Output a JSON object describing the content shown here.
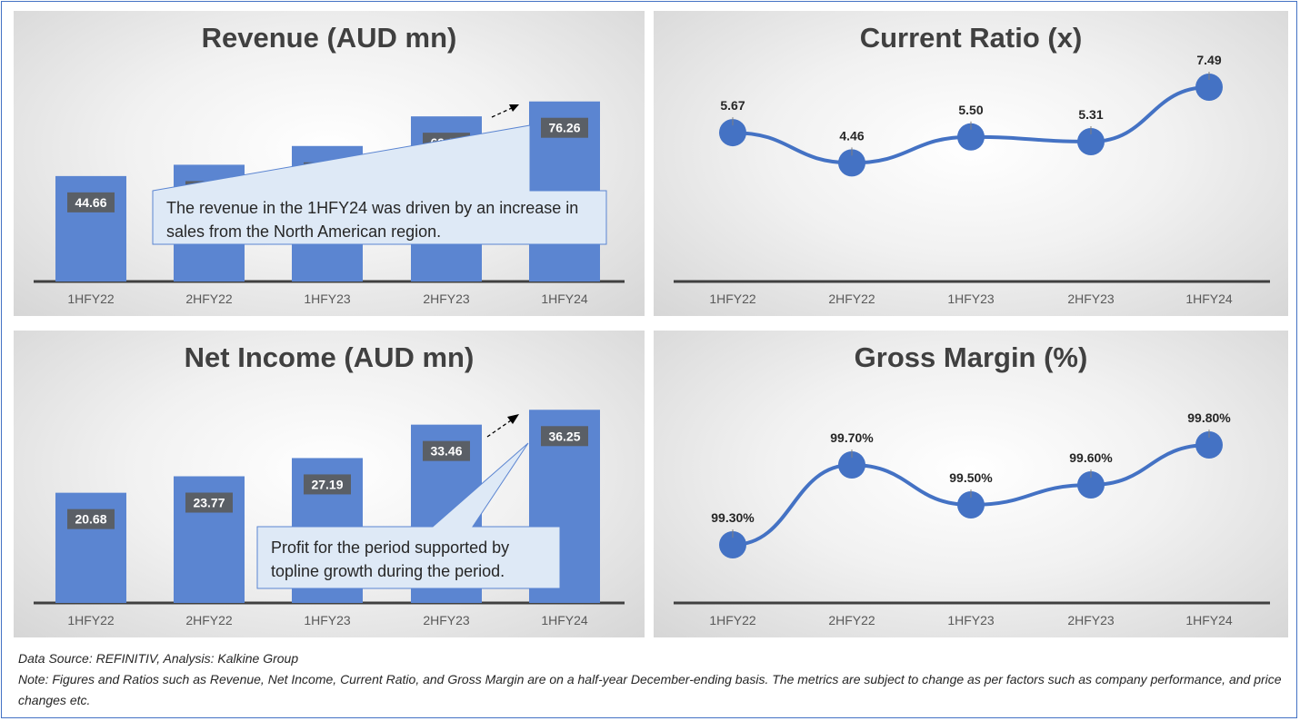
{
  "chart_data": [
    {
      "id": "revenue",
      "type": "bar",
      "title": "Revenue (AUD mn)",
      "categories": [
        "1HFY22",
        "2HFY22",
        "1HFY23",
        "2HFY23",
        "1HFY24"
      ],
      "values": [
        44.66,
        49.45,
        57.39,
        69.94,
        76.26
      ],
      "value_labels": [
        "44.66",
        "49.45",
        "57.39",
        "69.94",
        "76.26"
      ],
      "ylim": [
        0,
        80
      ],
      "bar_color": "#5b85d1",
      "callout": "The revenue in the 1HFY24 was driven by an increase in sales from the North American region."
    },
    {
      "id": "current_ratio",
      "type": "line",
      "title": "Current Ratio (x)",
      "categories": [
        "1HFY22",
        "2HFY22",
        "1HFY23",
        "2HFY23",
        "1HFY24"
      ],
      "values": [
        5.67,
        4.46,
        5.5,
        5.31,
        7.49
      ],
      "value_labels": [
        "5.67",
        "4.46",
        "5.50",
        "5.31",
        "7.49"
      ],
      "ylim": [
        0,
        8
      ],
      "line_color": "#4472c4"
    },
    {
      "id": "net_income",
      "type": "bar",
      "title": "Net Income (AUD mn)",
      "categories": [
        "1HFY22",
        "2HFY22",
        "1HFY23",
        "2HFY23",
        "1HFY24"
      ],
      "values": [
        20.68,
        23.77,
        27.19,
        33.46,
        36.25
      ],
      "value_labels": [
        "20.68",
        "23.77",
        "27.19",
        "33.46",
        "36.25"
      ],
      "ylim": [
        0,
        38
      ],
      "bar_color": "#5b85d1",
      "callout": "Profit for the period supported by topline growth during the period."
    },
    {
      "id": "gross_margin",
      "type": "line",
      "title": "Gross Margin (%)",
      "categories": [
        "1HFY22",
        "2HFY22",
        "1HFY23",
        "2HFY23",
        "1HFY24"
      ],
      "values": [
        99.3,
        99.7,
        99.5,
        99.6,
        99.8
      ],
      "value_labels": [
        "99.30%",
        "99.70%",
        "99.50%",
        "99.60%",
        "99.80%"
      ],
      "ylim": [
        99.0,
        100.0
      ],
      "line_color": "#4472c4"
    }
  ],
  "footer": {
    "source": "Data Source: REFINITIV, Analysis: Kalkine Group",
    "note": "Note: Figures and Ratios such as Revenue, Net Income, Current Ratio, and Gross Margin are on a half-year December-ending basis. The metrics are subject to change as per factors such as company performance, and price changes etc."
  }
}
